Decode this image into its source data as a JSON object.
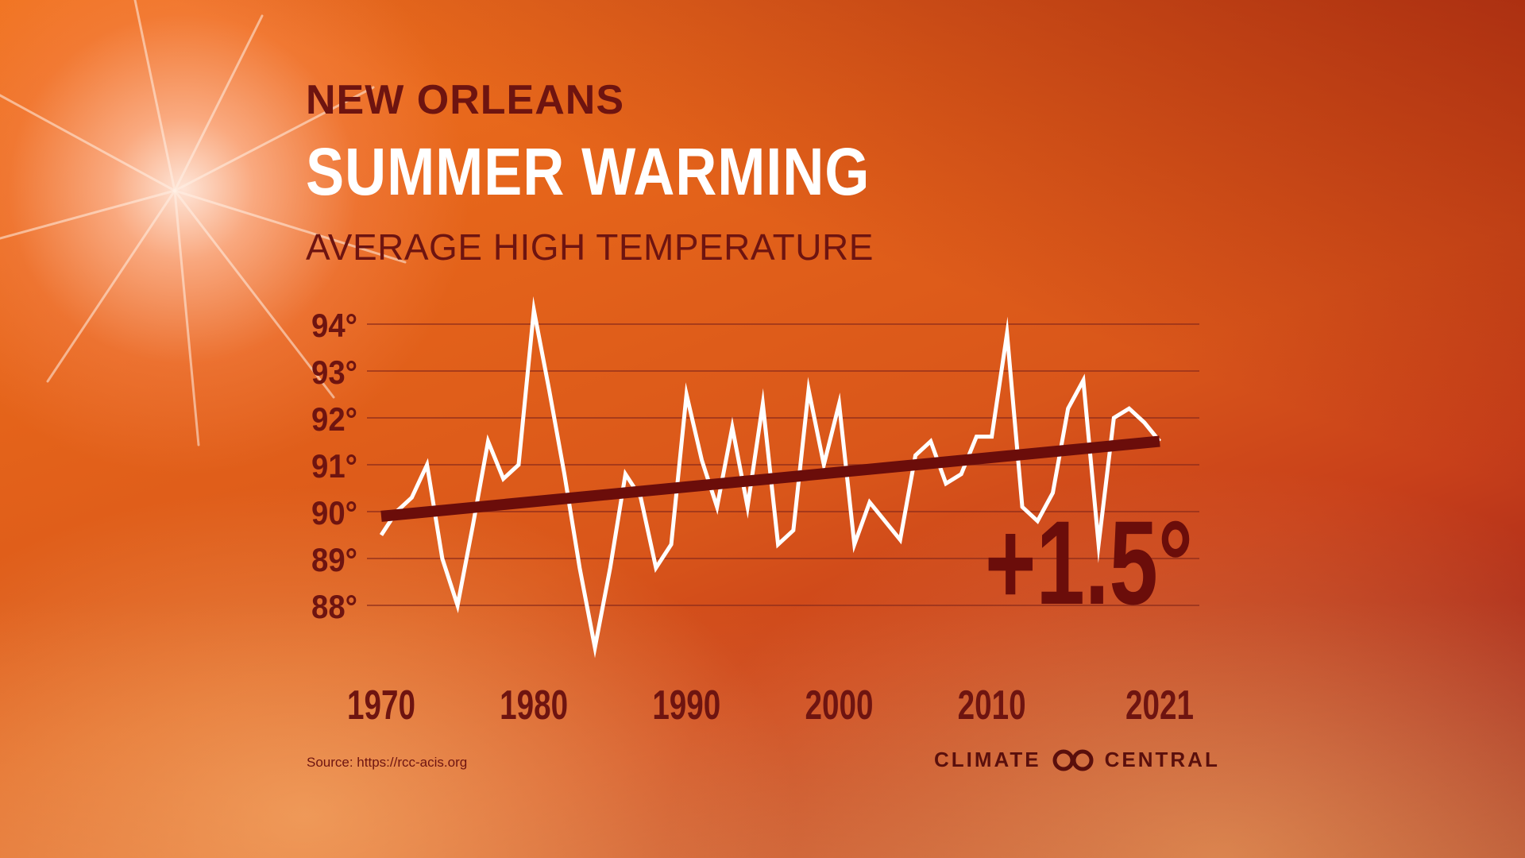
{
  "header": {
    "city": "NEW ORLEANS",
    "title": "SUMMER WARMING",
    "subtitle": "AVERAGE HIGH TEMPERATURE"
  },
  "footer": {
    "source": "Source: https://rcc-acis.org",
    "brand_left": "CLIMATE",
    "brand_right": "CENTRAL"
  },
  "colors": {
    "axis_text": "#6e1410",
    "trend": "#6b0d0a",
    "series": "#ffffff",
    "grid": "#8a2a1a"
  },
  "chart_data": {
    "type": "line",
    "title": "AVERAGE HIGH TEMPERATURE",
    "xlabel": "",
    "ylabel": "",
    "xlim": [
      1970,
      2021
    ],
    "ylim": [
      87,
      94.5
    ],
    "y_ticks": [
      88,
      89,
      90,
      91,
      92,
      93,
      94
    ],
    "y_tick_labels": [
      "88°",
      "89°",
      "90°",
      "91°",
      "92°",
      "93°",
      "94°"
    ],
    "x_ticks": [
      1970,
      1980,
      1990,
      2000,
      2010,
      2021
    ],
    "x_tick_labels": [
      "1970",
      "1980",
      "1990",
      "2000",
      "2010",
      "2021"
    ],
    "grid": true,
    "series": [
      {
        "name": "Average high temperature",
        "x": [
          1970,
          1971,
          1972,
          1973,
          1974,
          1975,
          1976,
          1977,
          1978,
          1979,
          1980,
          1981,
          1982,
          1983,
          1984,
          1985,
          1986,
          1987,
          1988,
          1989,
          1990,
          1991,
          1992,
          1993,
          1994,
          1995,
          1996,
          1997,
          1998,
          1999,
          2000,
          2001,
          2002,
          2003,
          2004,
          2005,
          2006,
          2007,
          2008,
          2009,
          2010,
          2011,
          2012,
          2013,
          2014,
          2015,
          2016,
          2017,
          2018,
          2019,
          2020,
          2021
        ],
        "values": [
          89.5,
          90.0,
          90.3,
          91.0,
          89.0,
          88.0,
          89.7,
          91.5,
          90.7,
          91.0,
          94.3,
          92.6,
          90.8,
          88.8,
          87.1,
          88.8,
          90.8,
          90.3,
          88.8,
          89.3,
          92.5,
          91.1,
          90.1,
          91.8,
          90.1,
          92.3,
          89.3,
          89.6,
          92.6,
          91.0,
          92.3,
          89.3,
          90.2,
          89.8,
          89.4,
          91.2,
          91.5,
          90.6,
          90.8,
          91.6,
          91.6,
          93.8,
          90.1,
          89.8,
          90.4,
          92.2,
          92.8,
          89.3,
          92.0,
          92.2,
          91.9,
          91.5
        ]
      },
      {
        "name": "Trend",
        "x": [
          1970,
          2021
        ],
        "values": [
          89.9,
          91.5
        ]
      }
    ],
    "annotations": [
      {
        "text": "+1.5°"
      }
    ]
  }
}
